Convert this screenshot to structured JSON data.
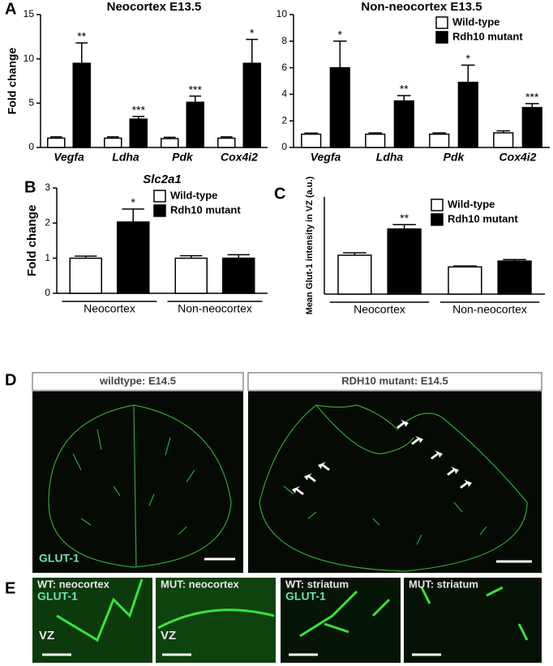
{
  "panel_letters": [
    "A",
    "B",
    "C",
    "D",
    "E"
  ],
  "chart_data": [
    {
      "type": "bar",
      "title": "Neocortex E13.5",
      "ylabel": "Fold change",
      "categories": [
        "Vegfa",
        "Ldha",
        "Pdk",
        "Cox4i2"
      ],
      "series": [
        {
          "name": "Wild-type",
          "color": "#ffffff",
          "values": [
            1.05,
            1.05,
            1.0,
            1.05
          ],
          "errors": [
            0.15,
            0.15,
            0.15,
            0.15
          ]
        },
        {
          "name": "Rdh10 mutant",
          "color": "#000000",
          "values": [
            9.5,
            3.2,
            5.1,
            9.5
          ],
          "errors": [
            2.3,
            0.3,
            0.7,
            2.7
          ]
        }
      ],
      "annotations": [
        "**",
        "***",
        "***",
        "*"
      ],
      "ylim": [
        0,
        15
      ],
      "yticks": [
        0,
        5,
        10,
        15
      ]
    },
    {
      "type": "bar",
      "title": "Non-neocortex E13.5",
      "categories": [
        "Vegfa",
        "Ldha",
        "Pdk",
        "Cox4i2"
      ],
      "series": [
        {
          "name": "Wild-type",
          "color": "#ffffff",
          "values": [
            1.0,
            1.0,
            1.0,
            1.1
          ],
          "errors": [
            0.08,
            0.1,
            0.1,
            0.15
          ]
        },
        {
          "name": "Rdh10 mutant",
          "color": "#000000",
          "values": [
            6.0,
            3.5,
            4.9,
            3.0
          ],
          "errors": [
            2.0,
            0.4,
            1.3,
            0.3
          ]
        }
      ],
      "annotations": [
        "*",
        "**",
        "*",
        "***"
      ],
      "ylim": [
        0,
        10
      ],
      "yticks": [
        0,
        2,
        4,
        6,
        8,
        10
      ],
      "legend": "upper right"
    },
    {
      "type": "bar",
      "title": "Slc2a1",
      "ylabel": "Fold change",
      "categories": [
        "Neocortex",
        "Non-neocortex"
      ],
      "series": [
        {
          "name": "Wild-type",
          "color": "#ffffff",
          "values": [
            1.0,
            1.0
          ],
          "errors": [
            0.06,
            0.07
          ]
        },
        {
          "name": "Rdh10 mutant",
          "color": "#000000",
          "values": [
            2.03,
            1.0
          ],
          "errors": [
            0.37,
            0.1
          ]
        }
      ],
      "annotations": [
        "*",
        null
      ],
      "ylim": [
        0,
        3
      ],
      "yticks": [
        0,
        1,
        2,
        3
      ],
      "legend": "upper right"
    },
    {
      "type": "bar",
      "ylabel": "Mean Glut-1 intensity in VZ (a.u.)",
      "categories": [
        "Neocortex",
        "Non-neocortex"
      ],
      "series": [
        {
          "name": "Wild-type",
          "color": "#ffffff",
          "values": [
            40,
            28
          ],
          "errors": [
            2.5,
            1
          ]
        },
        {
          "name": "Rdh10 mutant",
          "color": "#000000",
          "values": [
            67,
            34
          ],
          "errors": [
            4.5,
            1.5
          ]
        }
      ],
      "annotations": [
        "**",
        null
      ],
      "ylim": [
        0,
        100
      ],
      "legend": "upper right"
    }
  ],
  "panel_d": {
    "headers": [
      "wildtype: E14.5",
      "RDH10 mutant: E14.5"
    ],
    "stain": "GLUT-1"
  },
  "panel_e": {
    "labels": [
      "WT: neocortex",
      "MUT: neocortex",
      "WT: striatum",
      "MUT: striatum"
    ],
    "stains": [
      "GLUT-1",
      "GLUT-1"
    ],
    "zones": [
      "VZ",
      "VZ"
    ]
  }
}
